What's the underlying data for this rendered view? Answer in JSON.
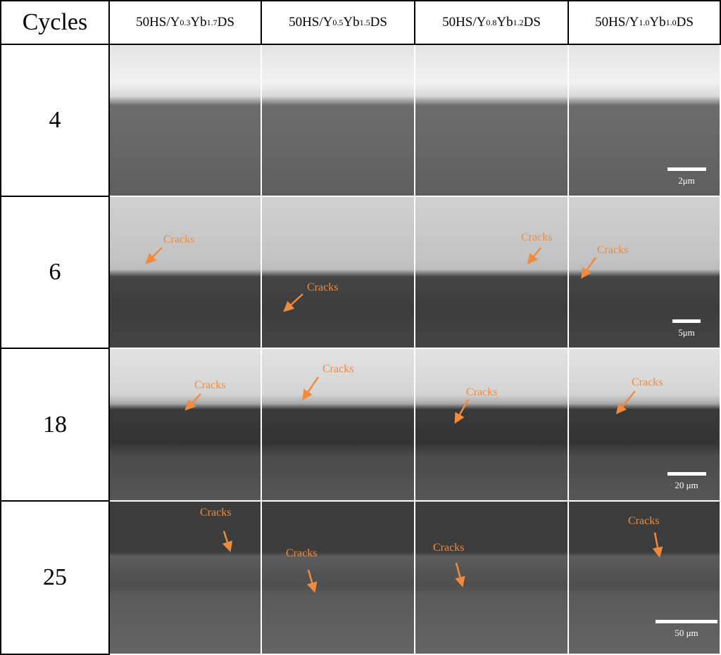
{
  "table": {
    "header_label": "Cycles",
    "columns": [
      {
        "prefix": "50HS/Y",
        "y": "0.3",
        "mid": "Yb",
        "yb": "1.7",
        "suffix": "DS"
      },
      {
        "prefix": "50HS/Y",
        "y": "0.5",
        "mid": "Yb",
        "yb": "1.5",
        "suffix": "DS"
      },
      {
        "prefix": "50HS/Y",
        "y": "0.8",
        "mid": "Yb",
        "yb": "1.2",
        "suffix": "DS"
      },
      {
        "prefix": "50HS/Y",
        "y": "1.0",
        "mid": "Yb",
        "yb": "1.0",
        "suffix": "DS"
      }
    ],
    "rows": [
      {
        "cycles": "4",
        "scale_bar": "2μm"
      },
      {
        "cycles": "6",
        "scale_bar": "5μm"
      },
      {
        "cycles": "18",
        "scale_bar": "20 μm"
      },
      {
        "cycles": "25",
        "scale_bar": "50 μm"
      }
    ]
  },
  "annotation": {
    "crack_label": "Cracks",
    "arrow_color": "#f08a3c"
  }
}
